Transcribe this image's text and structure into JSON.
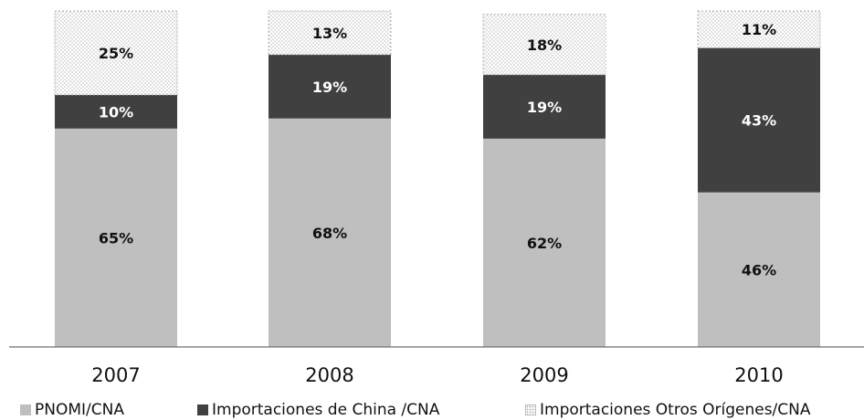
{
  "chart_data": {
    "type": "bar",
    "stacked": true,
    "categories": [
      "2007",
      "2008",
      "2009",
      "2010"
    ],
    "series": [
      {
        "name": "PNOMI/CNA",
        "values": [
          65,
          68,
          62,
          46
        ],
        "labels": [
          "65%",
          "68%",
          "62%",
          "46%"
        ],
        "color": "#bfbfbf"
      },
      {
        "name": "Importaciones de China /CNA",
        "values": [
          10,
          19,
          19,
          43
        ],
        "labels": [
          "10%",
          "19%",
          "19%",
          "43%"
        ],
        "color": "#404040"
      },
      {
        "name": "Importaciones Otros Orígenes/CNA",
        "values": [
          25,
          13,
          18,
          11
        ],
        "labels": [
          "25%",
          "13%",
          "18%",
          "11%"
        ],
        "color": "#ffffff",
        "pattern": "dotted"
      }
    ],
    "ylim": [
      0,
      100
    ],
    "grid": false,
    "legend_position": "bottom"
  }
}
